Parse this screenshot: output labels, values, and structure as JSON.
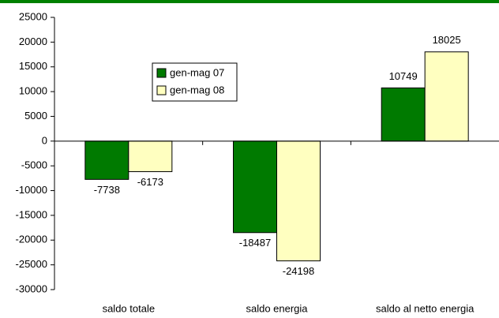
{
  "chart_data": {
    "type": "bar",
    "categories": [
      "saldo totale",
      "saldo energia",
      "saldo al netto energia"
    ],
    "series": [
      {
        "name": "gen-mag 07",
        "color": "#007a00",
        "values": [
          -7738,
          -18487,
          10749
        ]
      },
      {
        "name": "gen-mag 08",
        "color": "#ffffc0",
        "values": [
          -6173,
          -24198,
          18025
        ]
      }
    ],
    "ylim": [
      -30000,
      25000
    ],
    "yticks": [
      -30000,
      -25000,
      -20000,
      -15000,
      -10000,
      -5000,
      0,
      5000,
      10000,
      15000,
      20000,
      25000
    ],
    "grid": false
  }
}
